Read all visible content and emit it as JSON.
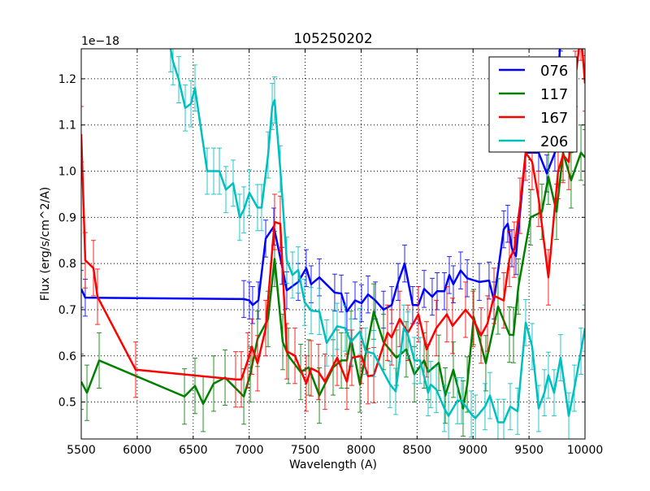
{
  "chart_data": {
    "type": "line",
    "title": "105250202",
    "xlabel": "Wavelength (A)",
    "ylabel": "Flux (erg/s/cm^2/A)",
    "offset_text": "1e−18",
    "xlim": [
      5500,
      10000
    ],
    "ylim": [
      0.42,
      1.265
    ],
    "xticks": [
      5500,
      6000,
      6500,
      7000,
      7500,
      8000,
      8500,
      9000,
      9500,
      10000
    ],
    "yticks": [
      0.5,
      0.6,
      0.7,
      0.8,
      0.9,
      1.0,
      1.1,
      1.2
    ],
    "ytick_labels": [
      "0.5",
      "0.6",
      "0.7",
      "0.8",
      "0.9",
      "1.0",
      "1.1",
      "1.2"
    ],
    "grid": true,
    "legend_position": "top-right",
    "series": [
      {
        "name": "076",
        "color": "#0000ff",
        "err": 0.04,
        "x": [
          5500,
          5536,
          6952,
          7002,
          7031,
          7082,
          7148,
          7220,
          7293,
          7336,
          7438,
          7510,
          7554,
          7627,
          7764,
          7823,
          7873,
          7946,
          8004,
          8062,
          8127,
          8200,
          8273,
          8331,
          8389,
          8461,
          8512,
          8563,
          8635,
          8679,
          8744,
          8788,
          8824,
          8889,
          8948,
          9056,
          9143,
          9187,
          9274,
          9310,
          9347,
          9383,
          9470,
          9586,
          9659,
          9731,
          9782
        ],
        "y": [
          0.745,
          0.726,
          0.723,
          0.72,
          0.71,
          0.72,
          0.854,
          0.88,
          0.795,
          0.742,
          0.76,
          0.79,
          0.755,
          0.77,
          0.737,
          0.735,
          0.696,
          0.72,
          0.714,
          0.733,
          0.72,
          0.7,
          0.71,
          0.76,
          0.8,
          0.71,
          0.71,
          0.745,
          0.728,
          0.74,
          0.74,
          0.775,
          0.755,
          0.785,
          0.768,
          0.76,
          0.763,
          0.72,
          0.874,
          0.886,
          0.833,
          0.816,
          1.04,
          1.04,
          0.995,
          1.04,
          1.3
        ]
      },
      {
        "name": "117",
        "color": "#008000",
        "err": 0.06,
        "x": [
          5500,
          5551,
          5660,
          6422,
          6516,
          6589,
          6683,
          6785,
          6952,
          7010,
          7075,
          7169,
          7227,
          7300,
          7351,
          7460,
          7532,
          7627,
          7750,
          7823,
          7873,
          7910,
          7990,
          8113,
          8200,
          8316,
          8403,
          8476,
          8563,
          8599,
          8694,
          8752,
          8824,
          8911,
          8948,
          9006,
          9114,
          9223,
          9325,
          9361,
          9405,
          9514,
          9615,
          9673,
          9746,
          9804,
          9876,
          9964,
          10000
        ],
        "y": [
          0.544,
          0.52,
          0.59,
          0.512,
          0.535,
          0.496,
          0.54,
          0.553,
          0.512,
          0.56,
          0.637,
          0.68,
          0.81,
          0.63,
          0.6,
          0.565,
          0.575,
          0.514,
          0.575,
          0.59,
          0.59,
          0.637,
          0.538,
          0.696,
          0.63,
          0.596,
          0.614,
          0.56,
          0.59,
          0.565,
          0.585,
          0.514,
          0.57,
          0.486,
          0.538,
          0.684,
          0.584,
          0.707,
          0.646,
          0.645,
          0.75,
          0.9,
          0.912,
          0.988,
          0.912,
          1.04,
          0.98,
          1.04,
          1.03
        ]
      },
      {
        "name": "167",
        "color": "#ff0000",
        "err": 0.06,
        "x": [
          5500,
          5536,
          5609,
          5645,
          5986,
          6879,
          6930,
          6988,
          7024,
          7075,
          7148,
          7227,
          7278,
          7336,
          7409,
          7510,
          7554,
          7619,
          7677,
          7786,
          7873,
          7917,
          8004,
          8062,
          8113,
          8236,
          8273,
          8345,
          8418,
          8512,
          8585,
          8672,
          8766,
          8817,
          8933,
          8999,
          9071,
          9129,
          9187,
          9274,
          9325,
          9368,
          9419,
          9470,
          9528,
          9586,
          9673,
          9760,
          9804,
          9855,
          9913,
          9964,
          10000
        ],
        "y": [
          1.08,
          0.807,
          0.79,
          0.728,
          0.57,
          0.549,
          0.549,
          0.59,
          0.62,
          0.584,
          0.66,
          0.89,
          0.886,
          0.61,
          0.6,
          0.54,
          0.573,
          0.565,
          0.544,
          0.596,
          0.544,
          0.596,
          0.6,
          0.556,
          0.558,
          0.65,
          0.64,
          0.68,
          0.65,
          0.69,
          0.614,
          0.66,
          0.69,
          0.665,
          0.7,
          0.68,
          0.644,
          0.67,
          0.73,
          0.72,
          0.81,
          0.83,
          0.925,
          1.04,
          1.02,
          0.94,
          0.77,
          1.0,
          1.035,
          1.02,
          1.2,
          1.3,
          1.19
        ]
      },
      {
        "name": "206",
        "color": "#00bfbf",
        "err": 0.05,
        "x": [
          6298,
          6320,
          6371,
          6429,
          6480,
          6516,
          6625,
          6683,
          6734,
          6792,
          6857,
          6915,
          6952,
          7002,
          7075,
          7111,
          7169,
          7206,
          7227,
          7278,
          7336,
          7387,
          7438,
          7496,
          7554,
          7627,
          7692,
          7750,
          7786,
          7859,
          7910,
          7990,
          8040,
          8113,
          8258,
          8309,
          8381,
          8418,
          8476,
          8527,
          8599,
          8621,
          8672,
          8744,
          8781,
          8861,
          8897,
          8984,
          9021,
          9107,
          9151,
          9223,
          9274,
          9332,
          9398,
          9470,
          9528,
          9586,
          9637,
          9673,
          9724,
          9782,
          9855,
          9905,
          9964,
          10000
        ],
        "y": [
          1.265,
          1.237,
          1.198,
          1.137,
          1.146,
          1.18,
          1.0,
          1.0,
          1.0,
          0.96,
          0.974,
          0.9,
          0.916,
          0.953,
          0.921,
          0.921,
          1.035,
          1.14,
          1.154,
          1.005,
          0.807,
          0.775,
          0.786,
          0.716,
          0.698,
          0.696,
          0.628,
          0.65,
          0.664,
          0.66,
          0.63,
          0.653,
          0.61,
          0.605,
          0.538,
          0.523,
          0.66,
          0.645,
          0.59,
          0.59,
          0.52,
          0.538,
          0.527,
          0.486,
          0.47,
          0.503,
          0.503,
          0.474,
          0.465,
          0.49,
          0.514,
          0.456,
          0.456,
          0.49,
          0.48,
          0.672,
          0.62,
          0.486,
          0.52,
          0.558,
          0.52,
          0.596,
          0.47,
          0.53,
          0.61,
          0.66
        ]
      }
    ]
  }
}
